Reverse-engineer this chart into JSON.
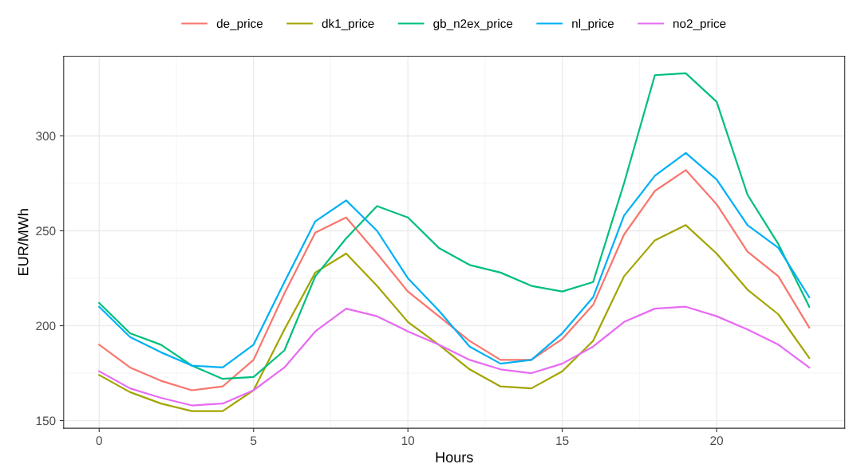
{
  "chart_data": {
    "type": "line",
    "xlabel": "Hours",
    "ylabel": "EUR/MWh",
    "x": [
      0,
      1,
      2,
      3,
      4,
      5,
      6,
      7,
      8,
      9,
      10,
      11,
      12,
      13,
      14,
      15,
      16,
      17,
      18,
      19,
      20,
      21,
      22,
      23
    ],
    "series": [
      {
        "name": "de_price",
        "color": "#f8766d",
        "values": [
          190,
          178,
          171,
          166,
          168,
          182,
          217,
          249,
          257,
          238,
          218,
          205,
          192,
          182,
          182,
          193,
          211,
          248,
          271,
          282,
          264,
          239,
          226,
          199
        ]
      },
      {
        "name": "dk1_price",
        "color": "#a3a500",
        "values": [
          174,
          165,
          159,
          155,
          155,
          166,
          198,
          228,
          238,
          221,
          202,
          190,
          177,
          168,
          167,
          176,
          192,
          226,
          245,
          253,
          238,
          219,
          206,
          183
        ]
      },
      {
        "name": "gb_n2ex_price",
        "color": "#00bf7d",
        "values": [
          212,
          196,
          190,
          179,
          172,
          173,
          187,
          226,
          246,
          263,
          257,
          241,
          232,
          228,
          221,
          218,
          223,
          275,
          332,
          333,
          318,
          269,
          243,
          210
        ]
      },
      {
        "name": "nl_price",
        "color": "#00b0f6",
        "values": [
          210,
          194,
          186,
          179,
          178,
          190,
          223,
          255,
          266,
          250,
          225,
          208,
          189,
          180,
          182,
          196,
          215,
          258,
          279,
          291,
          277,
          253,
          241,
          215
        ]
      },
      {
        "name": "no2_price",
        "color": "#e76bf3",
        "values": [
          176,
          167,
          162,
          158,
          159,
          166,
          178,
          197,
          209,
          205,
          197,
          190,
          182,
          177,
          175,
          180,
          189,
          202,
          209,
          210,
          205,
          198,
          190,
          178
        ]
      }
    ],
    "xlim": [
      -1.15,
      24.15
    ],
    "ylim": [
      146,
      342
    ],
    "xticks": [
      0,
      5,
      10,
      15,
      20
    ],
    "yticks": [
      150,
      200,
      250,
      300
    ],
    "grid": true,
    "legend": "top",
    "marker": "none",
    "line_style": "solid"
  }
}
